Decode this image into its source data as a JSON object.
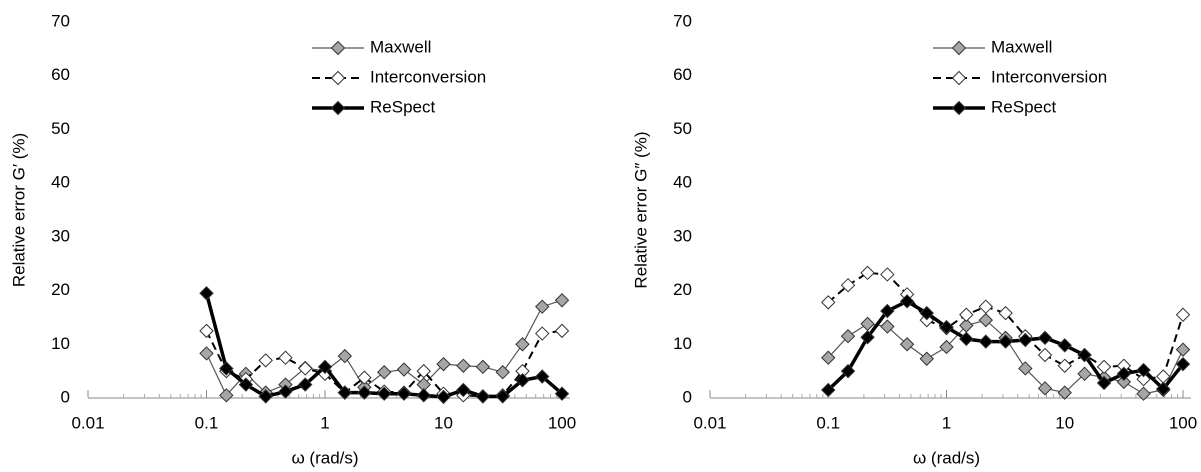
{
  "chart_data": [
    {
      "type": "line",
      "xlabel": "ω (rad/s)",
      "ylabel": "Relative error G′ (%)",
      "x": [
        0.1,
        0.147,
        0.215,
        0.316,
        0.464,
        0.681,
        1,
        1.47,
        2.15,
        3.16,
        4.64,
        6.81,
        10,
        14.7,
        21.5,
        31.6,
        46.4,
        68.1,
        100
      ],
      "xlim": [
        0.01,
        100
      ],
      "xticks": [
        0.01,
        0.1,
        1,
        10,
        100
      ],
      "xscale": "log",
      "ylim": [
        0,
        70
      ],
      "yticks": [
        0,
        10,
        20,
        30,
        40,
        50,
        60,
        70
      ],
      "legend": "upper right",
      "series": [
        {
          "name": "Maxwell",
          "color": "#555555",
          "marker_fill": "#a6a6a6",
          "dash": "none",
          "width": 1.2,
          "values": [
            8.3,
            0.5,
            4.5,
            1,
            2.5,
            5.6,
            5,
            7.8,
            2,
            4.8,
            5.3,
            2.5,
            6.3,
            6,
            5.8,
            4.8,
            10,
            17,
            18.2
          ]
        },
        {
          "name": "Interconversion",
          "color": "#000000",
          "marker_fill": "#ffffff",
          "dash": "8 5",
          "width": 2,
          "values": [
            12.5,
            5,
            3.5,
            7,
            7.5,
            5.5,
            4.5,
            1,
            3.8,
            1.2,
            1,
            5,
            0.8,
            0.5,
            0.3,
            0.5,
            5,
            12,
            12.5
          ]
        },
        {
          "name": "ReSpect",
          "color": "#000000",
          "marker_fill": "#000000",
          "dash": "none",
          "width": 3.5,
          "values": [
            19.5,
            5.5,
            2.5,
            0.3,
            1.2,
            2.5,
            5.8,
            1,
            1,
            0.8,
            0.8,
            0.5,
            0.2,
            1.5,
            0.3,
            0.3,
            3.3,
            4,
            0.8
          ]
        }
      ]
    },
    {
      "type": "line",
      "xlabel": "ω (rad/s)",
      "ylabel": "Relative error G″ (%)",
      "x": [
        0.1,
        0.147,
        0.215,
        0.316,
        0.464,
        0.681,
        1,
        1.47,
        2.15,
        3.16,
        4.64,
        6.81,
        10,
        14.7,
        21.5,
        31.6,
        46.4,
        68.1,
        100
      ],
      "xlim": [
        0.01,
        100
      ],
      "xticks": [
        0.01,
        0.1,
        1,
        10,
        100
      ],
      "xscale": "log",
      "ylim": [
        0,
        70
      ],
      "yticks": [
        0,
        10,
        20,
        30,
        40,
        50,
        60,
        70
      ],
      "legend": "upper right",
      "series": [
        {
          "name": "Maxwell",
          "color": "#555555",
          "marker_fill": "#a6a6a6",
          "dash": "none",
          "width": 1.2,
          "values": [
            7.5,
            11.5,
            13.8,
            13.3,
            10,
            7.3,
            9.5,
            13.5,
            14.5,
            11.2,
            5.5,
            1.8,
            1,
            4.5,
            3.8,
            3,
            0.8,
            1.5,
            9
          ]
        },
        {
          "name": "Interconversion",
          "color": "#000000",
          "marker_fill": "#ffffff",
          "dash": "8 5",
          "width": 2,
          "values": [
            17.8,
            21,
            23.3,
            23,
            19.3,
            14.5,
            13,
            15.5,
            17,
            15.8,
            11.5,
            8,
            6,
            8,
            5.8,
            6,
            3.5,
            4,
            15.5
          ]
        },
        {
          "name": "ReSpect",
          "color": "#000000",
          "marker_fill": "#000000",
          "dash": "none",
          "width": 3.5,
          "values": [
            1.5,
            5,
            11.3,
            16.2,
            18,
            15.8,
            13.2,
            11,
            10.5,
            10.5,
            10.8,
            11.2,
            9.8,
            8,
            2.8,
            4.5,
            5.2,
            1.7,
            6.3
          ]
        }
      ]
    }
  ]
}
